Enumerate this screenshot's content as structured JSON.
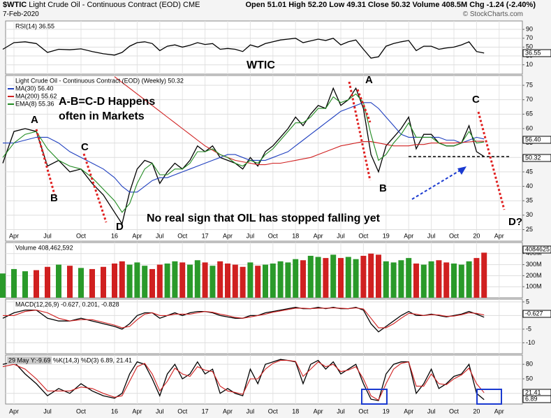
{
  "header": {
    "symbol": "$WTIC",
    "name": "Light Crude Oil - Continuous Contract (EOD)",
    "exchange": "CME",
    "date": "7-Feb-2020",
    "quote": "Open 51.01  High 52.20  Low 49.31  Close 50.32  Volume 408.5M  Chg -1.24 (-2.40%)",
    "credit": "© StockCharts.com"
  },
  "chart_data": [
    {
      "type": "line",
      "ylim": [
        -11,
        109
      ],
      "yticks": [
        10,
        30,
        50,
        70,
        90
      ],
      "grid": true,
      "right_labels": [
        "36.55"
      ],
      "annotations": [
        {
          "text": "WTIC",
          "color": "#e020c0"
        }
      ],
      "series": [
        {
          "name": "RSI(14) 36.55",
          "color": "#000000",
          "values": [
            45,
            60,
            62,
            58,
            38,
            45,
            44,
            46,
            40,
            35,
            32,
            38,
            52,
            60,
            62,
            58,
            42,
            52,
            55,
            50,
            54,
            60,
            56,
            58,
            45,
            47,
            45,
            40,
            55,
            50,
            58,
            62,
            66,
            68,
            70,
            60,
            64,
            68,
            65,
            70,
            55,
            62,
            66,
            45,
            25,
            28,
            52,
            58,
            62,
            65,
            42,
            52,
            52,
            45,
            48,
            50,
            55,
            62,
            40,
            36.55,
            null,
            null
          ]
        }
      ]
    },
    {
      "type": "line",
      "title": "Light Crude Oil - Continuous Contract (EOD) (Weekly) 50.32",
      "ylim": [
        21,
        78.4
      ],
      "yticks": [
        25,
        30,
        35,
        40,
        45,
        50,
        55,
        60,
        65,
        70,
        75
      ],
      "grid": true,
      "right_labels": [
        "56.40",
        "50.32"
      ],
      "categories": [
        null,
        "Apr",
        null,
        null,
        "Jul",
        null,
        null,
        "Oct",
        null,
        null,
        "16",
        null,
        null,
        "Apr",
        null,
        null,
        "Jul",
        null,
        null,
        "Oct",
        null,
        null,
        "17",
        null,
        null,
        "Apr",
        null,
        null,
        "Jul",
        null,
        null,
        "Oct",
        null,
        null,
        "18",
        null,
        null,
        "Apr",
        null,
        null,
        "Jul",
        null,
        null,
        "Oct",
        null,
        null,
        "19",
        null,
        null,
        "Apr",
        null,
        null,
        "Jul",
        null,
        null,
        "Oct",
        null,
        null,
        "20",
        null,
        null,
        "Apr"
      ],
      "annotations": [
        {
          "text": "A",
          "color": "#1a3ad0"
        },
        {
          "text": "B",
          "color": "#1a3ad0"
        },
        {
          "text": "C",
          "color": "#1a3ad0"
        },
        {
          "text": "D",
          "color": "#1a3ad0"
        },
        {
          "text": "A",
          "color": "#a020d0"
        },
        {
          "text": "B",
          "color": "#a020d0"
        },
        {
          "text": "C",
          "color": "#a020d0"
        },
        {
          "text": "D?",
          "color": "#a020d0"
        },
        {
          "text": "A-B=C-D Happens",
          "color": "#1a3ad0"
        },
        {
          "text": "often in Markets",
          "color": "#1a3ad0"
        },
        {
          "text": "No real sign that OIL has stopped falling yet",
          "color": "#e02020"
        }
      ],
      "series": [
        {
          "color": "#000000",
          "values": [
            48,
            59,
            60,
            59,
            47,
            49,
            45,
            46,
            41,
            37,
            31,
            27,
            38,
            46,
            49,
            48,
            41,
            45,
            48,
            46,
            49,
            54,
            52,
            54,
            50,
            49,
            48,
            46,
            50,
            47,
            52,
            54,
            57,
            60,
            64,
            61,
            65,
            68,
            67,
            74,
            68,
            70,
            74,
            67,
            51,
            45,
            54,
            57,
            60,
            64,
            53,
            58,
            58,
            55,
            54,
            54,
            55,
            61,
            52,
            50.32,
            null,
            null
          ]
        },
        {
          "name": "MA(30) 56.40",
          "color": "#1f3fbf",
          "values": [
            55,
            55,
            56,
            57,
            57,
            55,
            52,
            50,
            48,
            46,
            43,
            40,
            38,
            38,
            40,
            42,
            43,
            43,
            44,
            45,
            46,
            47,
            48,
            49,
            50,
            51,
            51,
            50,
            49,
            49,
            49,
            50,
            51,
            52,
            54,
            56,
            58,
            60,
            62,
            64,
            66,
            67,
            68,
            69,
            69,
            67,
            64,
            61,
            58,
            57,
            57,
            57,
            57,
            57,
            56,
            56,
            55,
            56,
            57,
            56.4,
            null,
            null
          ]
        },
        {
          "name": "MA(200) 55.62",
          "color": "#d02020",
          "values": [
            null,
            null,
            null,
            null,
            null,
            null,
            null,
            null,
            null,
            null,
            78,
            76,
            74,
            72,
            70,
            68,
            66,
            64,
            62,
            60,
            58,
            56,
            54,
            52.5,
            51,
            50,
            49,
            48.5,
            48,
            47.5,
            47.5,
            48,
            48,
            48.5,
            49,
            49.5,
            50,
            51,
            52,
            53,
            54,
            54.5,
            55,
            55.5,
            55.5,
            55,
            54.5,
            54,
            54,
            54,
            54.5,
            54.5,
            55,
            55,
            55,
            55,
            55.2,
            55.4,
            55.6,
            55.62,
            null,
            null
          ]
        },
        {
          "name": "EMA(8) 55.36",
          "color": "#208a20",
          "values": [
            50,
            55,
            58,
            59,
            53,
            49,
            47,
            46,
            43,
            39,
            35,
            31,
            34,
            41,
            46,
            48,
            44,
            44,
            46,
            46,
            48,
            52,
            52,
            53,
            51,
            50,
            48,
            47,
            49,
            48,
            51,
            53,
            56,
            59,
            62,
            62,
            64,
            67,
            67,
            71,
            69,
            70,
            72,
            69,
            58,
            49,
            51,
            55,
            58,
            62,
            57,
            57,
            57,
            55,
            54,
            54,
            55,
            59,
            55,
            55.36,
            null,
            null
          ]
        }
      ]
    },
    {
      "type": "bar",
      "ylim": [
        0,
        500
      ],
      "grid": true,
      "right_labels": [
        "4084625"
      ],
      "yticks": [
        {
          "value": 100,
          "label": "100M"
        },
        {
          "value": 200,
          "label": "200M"
        },
        {
          "value": 300,
          "label": "300M"
        },
        {
          "value": 400,
          "label": "400M"
        }
      ],
      "series": [
        {
          "name": "Volume 408,462,592",
          "color": "#3a3a3a",
          "values": [
            220,
            260,
            240,
            250,
            280,
            300,
            290,
            270,
            260,
            280,
            310,
            330,
            300,
            320,
            290,
            260,
            300,
            310,
            330,
            320,
            300,
            340,
            320,
            290,
            330,
            310,
            300,
            280,
            320,
            290,
            300,
            310,
            330,
            320,
            350,
            340,
            380,
            370,
            360,
            390,
            360,
            370,
            350,
            380,
            400,
            390,
            330,
            320,
            340,
            360,
            310,
            300,
            330,
            340,
            320,
            310,
            300,
            330,
            360,
            408.462592,
            null,
            null
          ]
        }
      ]
    },
    {
      "type": "line",
      "ylim": [
        -14,
        6
      ],
      "yticks": [
        -10,
        -5,
        0,
        5
      ],
      "grid": true,
      "right_labels": [
        "-0.627"
      ],
      "series": [
        {
          "name": "MACD(12,26,9) -0.627, 0.201, -0.828",
          "color": "#000000",
          "values": [
            -1,
            1,
            2,
            2,
            -1,
            -2,
            -2,
            -1,
            -2,
            -3,
            -4,
            -5,
            -3,
            0,
            1,
            1,
            -1,
            0,
            1,
            0,
            1,
            1.5,
            1.5,
            1,
            0,
            -0.5,
            -1,
            -1,
            0,
            0,
            1,
            1.5,
            2,
            2.5,
            3,
            2.5,
            2.5,
            3,
            2.5,
            3,
            2.5,
            2.5,
            3,
            2,
            -3,
            -6,
            -4,
            -2,
            0,
            1.5,
            0,
            0,
            0.5,
            0,
            -0.5,
            0,
            0.5,
            1.5,
            0.5,
            -0.627,
            null,
            null
          ]
        },
        {
          "color": "#d02020",
          "values": [
            0,
            0,
            1.5,
            2,
            1,
            -1,
            -2,
            -1.5,
            -1.5,
            -2.5,
            -3.5,
            -4.5,
            -4,
            -1.5,
            0.5,
            1,
            0,
            0,
            0.5,
            0.5,
            0.5,
            1,
            1.5,
            1.2,
            0.5,
            0,
            -0.7,
            -1,
            -0.5,
            0,
            0.5,
            1.2,
            1.7,
            2.2,
            2.7,
            2.7,
            2.5,
            2.7,
            2.7,
            2.8,
            2.7,
            2.5,
            2.8,
            2.4,
            -1,
            -4.5,
            -4.5,
            -3,
            -1,
            0.8,
            0.5,
            0,
            0.3,
            0.2,
            -0.3,
            -0.2,
            0.3,
            1,
            0.8,
            0.201,
            null,
            null
          ]
        }
      ]
    },
    {
      "type": "line",
      "ylim": [
        -2,
        99
      ],
      "yticks": [
        20,
        50,
        80
      ],
      "grid": true,
      "right_labels": [
        "21.41",
        "6.89"
      ],
      "cursor_label": "29 May Y:-9.69",
      "series": [
        {
          "name": "%K(14,3) %D(3) 6.89, 21.41",
          "color": "#000000",
          "values": [
            80,
            85,
            60,
            40,
            15,
            30,
            20,
            40,
            25,
            15,
            10,
            20,
            60,
            85,
            80,
            50,
            15,
            60,
            80,
            50,
            60,
            85,
            60,
            70,
            20,
            30,
            20,
            15,
            70,
            40,
            80,
            85,
            90,
            88,
            85,
            40,
            80,
            88,
            70,
            85,
            60,
            70,
            80,
            40,
            8,
            5,
            60,
            80,
            85,
            85,
            20,
            40,
            70,
            30,
            40,
            55,
            60,
            80,
            20,
            6.89,
            null,
            null
          ]
        },
        {
          "color": "#d02020",
          "values": [
            75,
            80,
            70,
            50,
            25,
            25,
            25,
            33,
            30,
            20,
            12,
            15,
            45,
            75,
            82,
            60,
            25,
            45,
            72,
            60,
            55,
            75,
            68,
            65,
            35,
            25,
            22,
            18,
            50,
            50,
            70,
            82,
            88,
            88,
            86,
            55,
            70,
            85,
            75,
            80,
            65,
            68,
            75,
            50,
            15,
            6,
            40,
            70,
            82,
            85,
            35,
            35,
            60,
            40,
            38,
            50,
            58,
            72,
            40,
            21.41,
            null,
            null
          ]
        }
      ]
    }
  ]
}
